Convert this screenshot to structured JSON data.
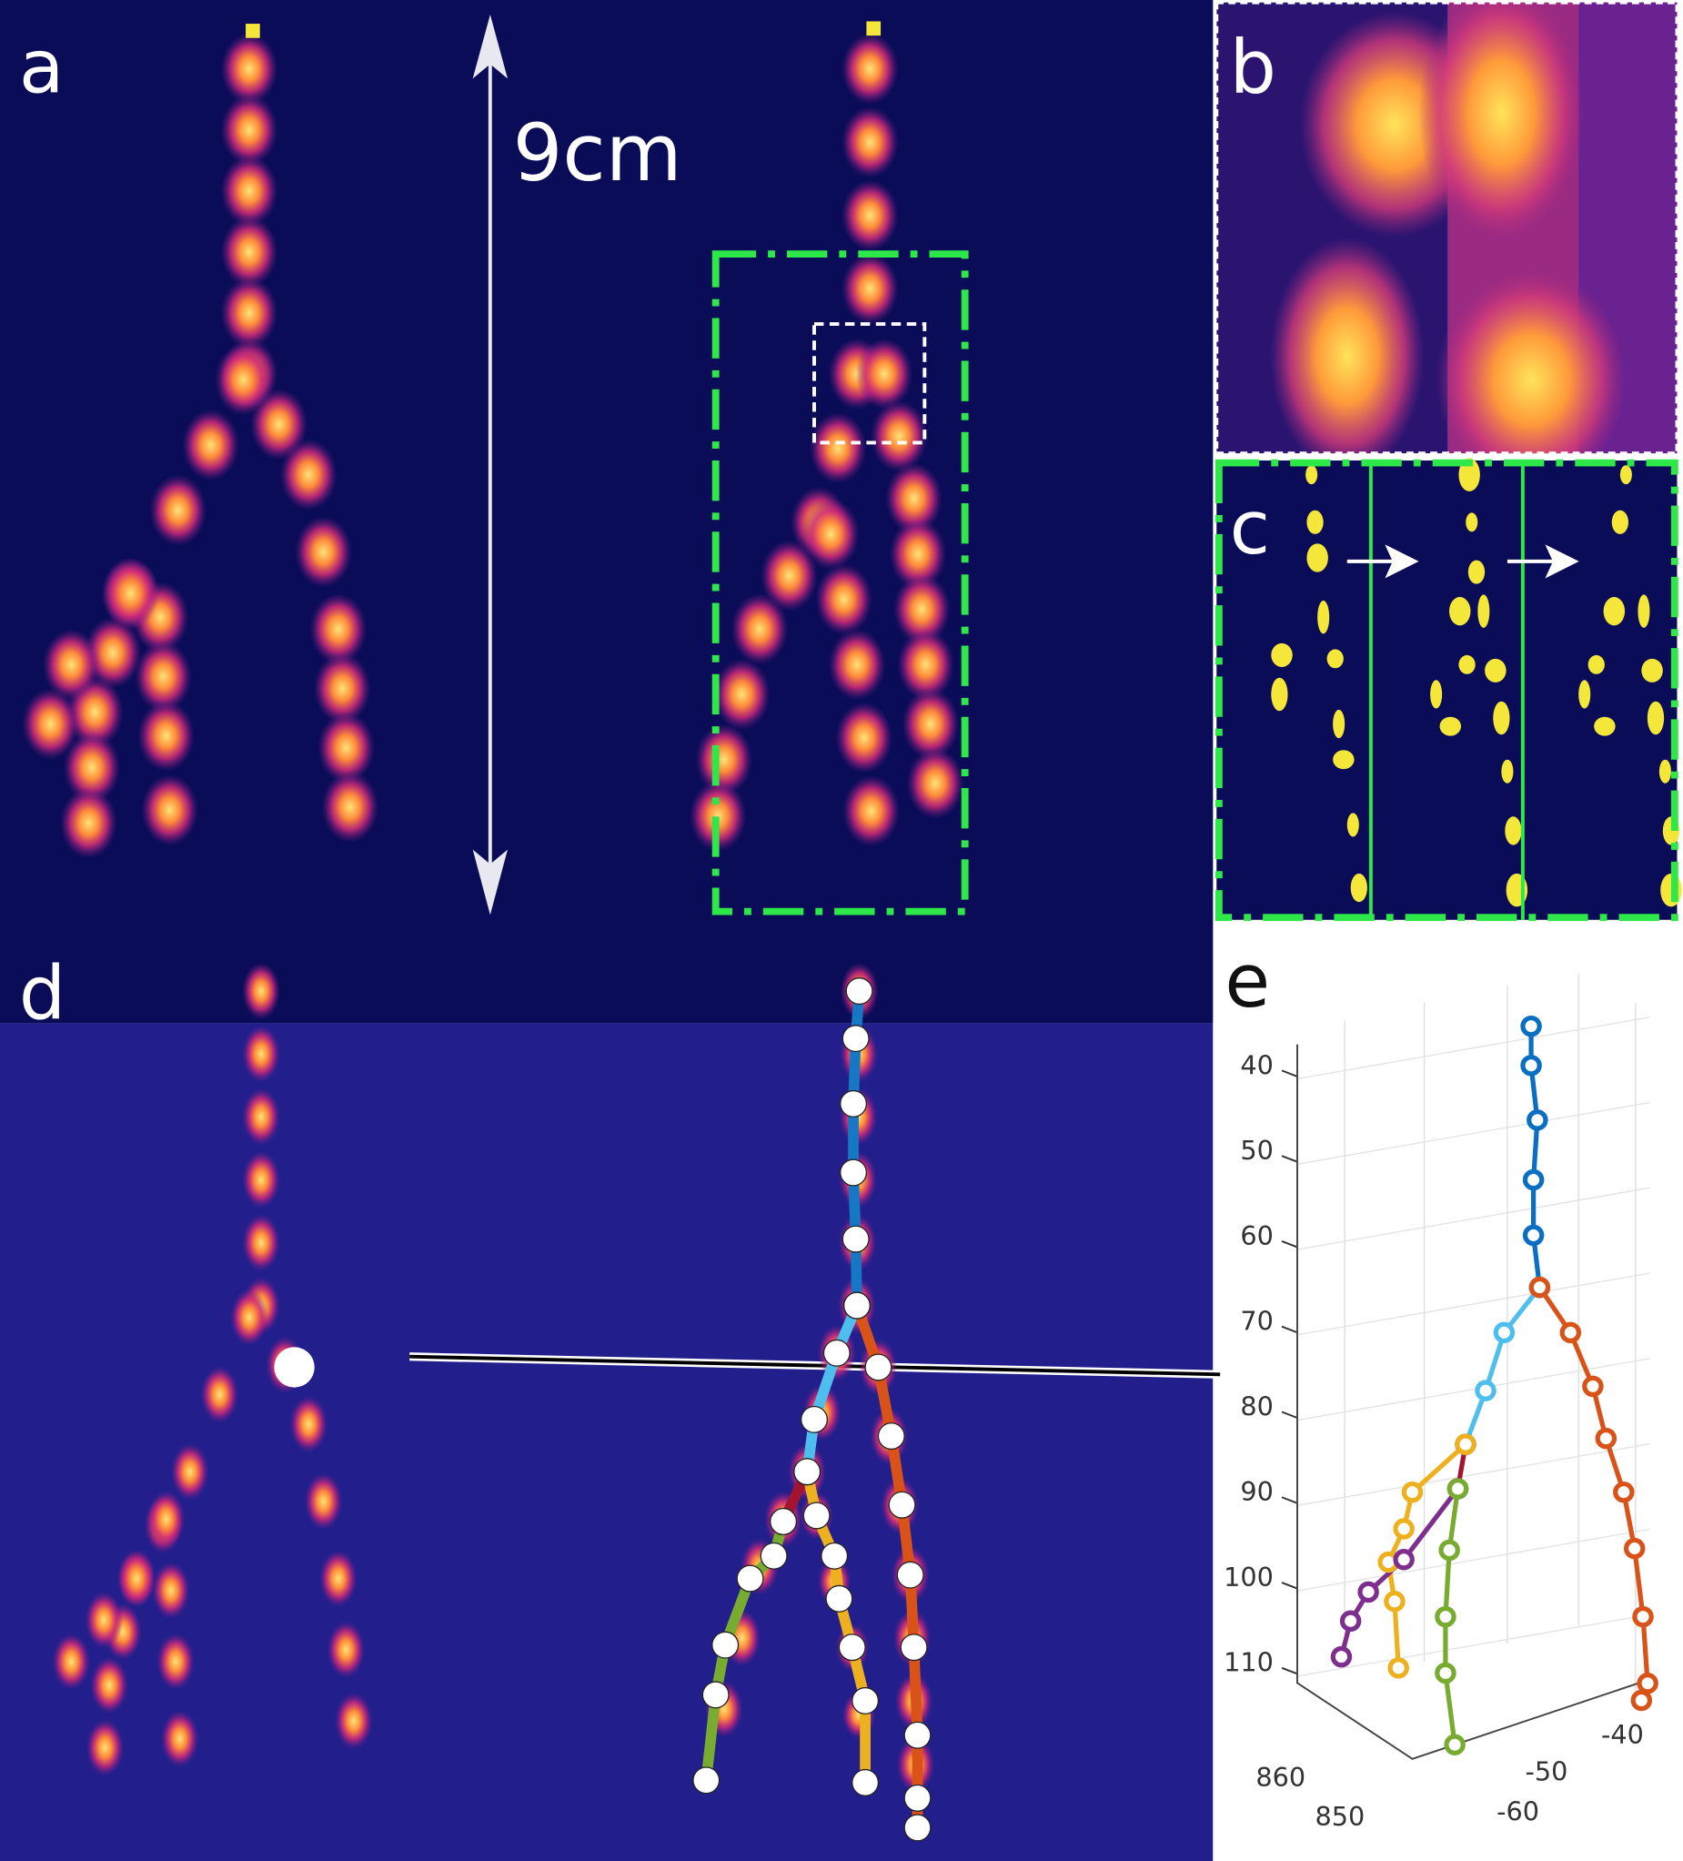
{
  "panels": {
    "a": {
      "label": "a",
      "scale_label": "9cm"
    },
    "b": {
      "label": "b"
    },
    "c": {
      "label": "c"
    },
    "d": {
      "label": "d"
    },
    "e": {
      "label": "e"
    }
  },
  "colors": {
    "background_dark": "#0b0c57",
    "background_d": "#221f8c",
    "roi_green": "#2ee84a",
    "inset_white": "#ffffff",
    "blob_yellow": "#f5e63a"
  },
  "chart_data": {
    "type": "line",
    "projection": "3d",
    "title": "",
    "z_axis": {
      "ticks": [
        "40",
        "50",
        "60",
        "70",
        "80",
        "90",
        "100",
        "110"
      ],
      "range": [
        35,
        120
      ],
      "reversed": true
    },
    "y_axis": {
      "ticks": [
        "-60",
        "-50",
        "-40"
      ]
    },
    "x_axis": {
      "ticks": [
        "850",
        "860"
      ]
    },
    "grid": true,
    "marker": "open-circle",
    "series": [
      {
        "color": "#0a6fc2",
        "points": [
          [
            -52.3,
            35.5
          ],
          [
            -52.3,
            40.1
          ],
          [
            -51.5,
            46.5
          ],
          [
            -52,
            53.5
          ],
          [
            -52,
            60
          ],
          [
            -51.2,
            66.1
          ]
        ]
      },
      {
        "color": "#4dbeee",
        "points": [
          [
            -51.2,
            66.1
          ],
          [
            -55.8,
            71.4
          ],
          [
            -58.2,
            78.2
          ],
          [
            -60.8,
            84.5
          ]
        ]
      },
      {
        "color": "#d95319",
        "points": [
          [
            -51.2,
            66.1
          ],
          [
            -47.2,
            71.4
          ],
          [
            -44.3,
            77.7
          ],
          [
            -42.6,
            83.8
          ],
          [
            -40.3,
            90.1
          ],
          [
            -38.9,
            96.7
          ],
          [
            -37.8,
            104.7
          ],
          [
            -37.2,
            112.5
          ],
          [
            -38,
            114.5
          ]
        ]
      },
      {
        "color": "#a2142f",
        "points": [
          [
            -60.8,
            84.5
          ],
          [
            -61.8,
            89.7
          ]
        ]
      },
      {
        "color": "#edb120",
        "points": [
          [
            -60.8,
            84.5
          ],
          [
            -67.7,
            90.1
          ],
          [
            -68.8,
            94.4
          ],
          [
            -70.8,
            98.3
          ],
          [
            -70,
            102.9
          ],
          [
            -69.5,
            110.7
          ]
        ]
      },
      {
        "color": "#7e2f8e",
        "points": [
          [
            -61.8,
            89.7
          ],
          [
            -68.8,
            98
          ],
          [
            -73.4,
            101.8
          ],
          [
            -75.7,
            105.2
          ],
          [
            -76.9,
            109.4
          ]
        ]
      },
      {
        "color": "#77ac30",
        "points": [
          [
            -61.8,
            89.7
          ],
          [
            -62.9,
            96.9
          ],
          [
            -63.4,
            104.7
          ],
          [
            -63.4,
            111.3
          ],
          [
            -62.2,
            119.7
          ]
        ]
      }
    ]
  }
}
